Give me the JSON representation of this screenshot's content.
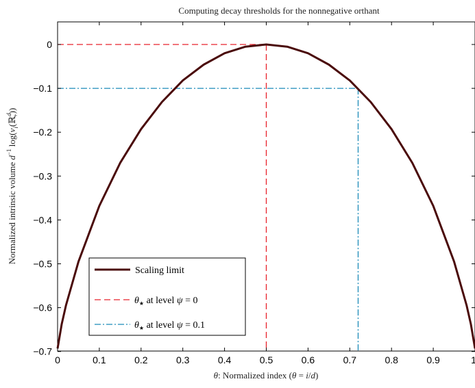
{
  "chart_data": {
    "type": "line",
    "title": "Computing decay thresholds for the nonnegative orthant",
    "xlabel": {
      "theta": "θ",
      "text": ": Normalized index (",
      "theta2": "θ",
      "eq": " = ",
      "i": "i",
      "slash": "/",
      "d": "d",
      "close": ")"
    },
    "ylabel": {
      "text": "Normalized intrinsic volume ",
      "d": "d",
      "sup": "−1",
      "log": " log(",
      "v": "v",
      "sub": "i",
      "open": "(",
      "R": "ℝ",
      "Rsup": "d",
      "Rsub": "+",
      "close": "))"
    },
    "xlim": [
      0,
      1
    ],
    "ylim": [
      -0.7,
      0.05
    ],
    "x_ticks": [
      0,
      0.1,
      0.2,
      0.3,
      0.4,
      0.5,
      0.6,
      0.7,
      0.8,
      0.9
    ],
    "x_tick_labels": [
      "0",
      "0.1",
      "0.2",
      "0.3",
      "0.4",
      "0.5",
      "0.6",
      "0.7",
      "0.8",
      "0.9"
    ],
    "x_edge_label": "1",
    "y_ticks": [
      0,
      -0.1,
      -0.2,
      -0.3,
      -0.4,
      -0.5,
      -0.6,
      -0.7
    ],
    "y_tick_labels": [
      "0",
      "-0.1",
      "-0.2",
      "-0.3",
      "-0.4",
      "-0.5",
      "-0.6",
      "-0.7"
    ],
    "grid": false,
    "series": [
      {
        "name": "Scaling limit",
        "color": "#4a0a0a",
        "style": "solid",
        "x": [
          0,
          0.01,
          0.02,
          0.05,
          0.1,
          0.15,
          0.2,
          0.25,
          0.3,
          0.35,
          0.4,
          0.45,
          0.5,
          0.55,
          0.6,
          0.65,
          0.7,
          0.75,
          0.8,
          0.85,
          0.9,
          0.95,
          0.98,
          0.99,
          1
        ],
        "y": [
          -0.693,
          -0.637,
          -0.595,
          -0.495,
          -0.368,
          -0.27,
          -0.193,
          -0.131,
          -0.082,
          -0.046,
          -0.02,
          -0.005,
          0,
          -0.005,
          -0.02,
          -0.046,
          -0.082,
          -0.131,
          -0.193,
          -0.27,
          -0.368,
          -0.495,
          -0.595,
          -0.637,
          -0.693
        ]
      },
      {
        "name": "θ★ at level ψ = 0",
        "color": "#e8202a",
        "style": "dashed",
        "threshold_x": 0.5,
        "level": 0
      },
      {
        "name": "θ★ at level ψ = 0.1",
        "color": "#1a8ab8",
        "style": "dashdot",
        "threshold_x": 0.72,
        "level": -0.1
      }
    ],
    "legend": {
      "placement": "bottom-left",
      "entries": [
        {
          "label": "Scaling limit"
        },
        {
          "theta": "θ",
          "star": "★",
          "text": " at level ",
          "psi": "ψ",
          "eq": " = 0"
        },
        {
          "theta": "θ",
          "star": "★",
          "text": " at level ",
          "psi": "ψ",
          "eq": " = 0.1"
        }
      ]
    }
  }
}
